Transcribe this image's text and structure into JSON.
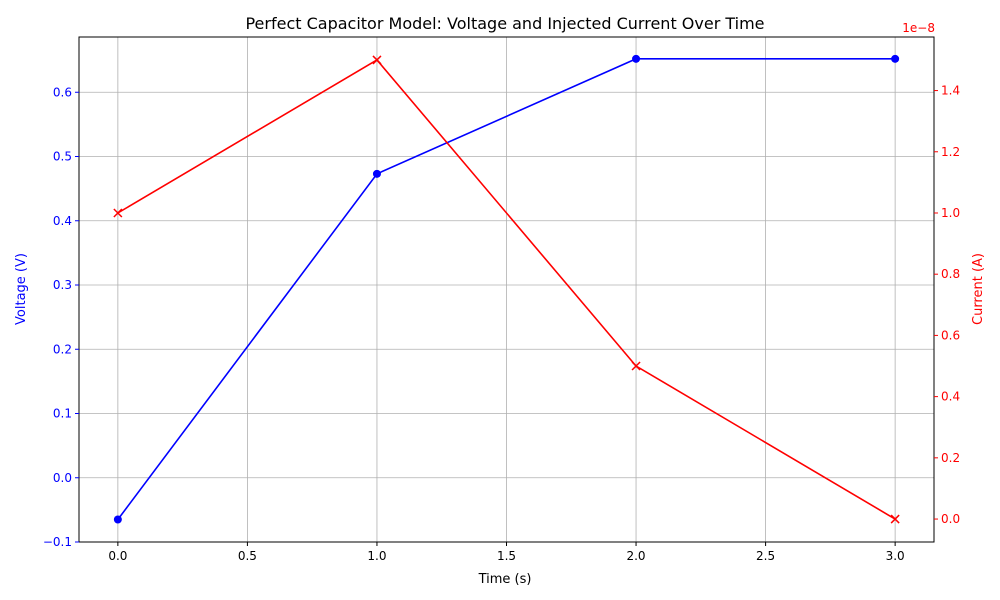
{
  "chart_data": {
    "type": "line",
    "title": "Perfect Capacitor Model: Voltage and Injected Current Over Time",
    "xlabel": "Time (s)",
    "x": [
      0,
      1,
      2,
      3
    ],
    "xlim": [
      -0.15,
      3.15
    ],
    "xticks": [
      0.0,
      0.5,
      1.0,
      1.5,
      2.0,
      2.5,
      3.0
    ],
    "xtick_labels": [
      "0.0",
      "0.5",
      "1.0",
      "1.5",
      "2.0",
      "2.5",
      "3.0"
    ],
    "grid": true,
    "legend": "none",
    "y_left": {
      "label": "Voltage (V)",
      "color": "#0000ff",
      "ylim": [
        -0.1,
        0.686
      ],
      "ticks": [
        -0.1,
        0.0,
        0.1,
        0.2,
        0.3,
        0.4,
        0.5,
        0.6
      ],
      "tick_labels": [
        "−0.1",
        "0.0",
        "0.1",
        "0.2",
        "0.3",
        "0.4",
        "0.5",
        "0.6"
      ]
    },
    "y_right": {
      "label": "Current (A)",
      "color": "#ff0000",
      "ylim": [
        -0.075,
        1.575
      ],
      "ticks": [
        0.0,
        0.2,
        0.4,
        0.6,
        0.8,
        1.0,
        1.2,
        1.4
      ],
      "tick_labels": [
        "0.0",
        "0.2",
        "0.4",
        "0.6",
        "0.8",
        "1.0",
        "1.2",
        "1.4"
      ],
      "offset_text": "1e−8"
    },
    "series": [
      {
        "axis": "left",
        "color": "#0000ff",
        "marker": "circle",
        "values": [
          -0.065,
          0.473,
          0.652,
          0.652
        ]
      },
      {
        "axis": "right",
        "color": "#ff0000",
        "marker": "x",
        "values": [
          1.0,
          1.5,
          0.5,
          0.0
        ]
      }
    ]
  }
}
